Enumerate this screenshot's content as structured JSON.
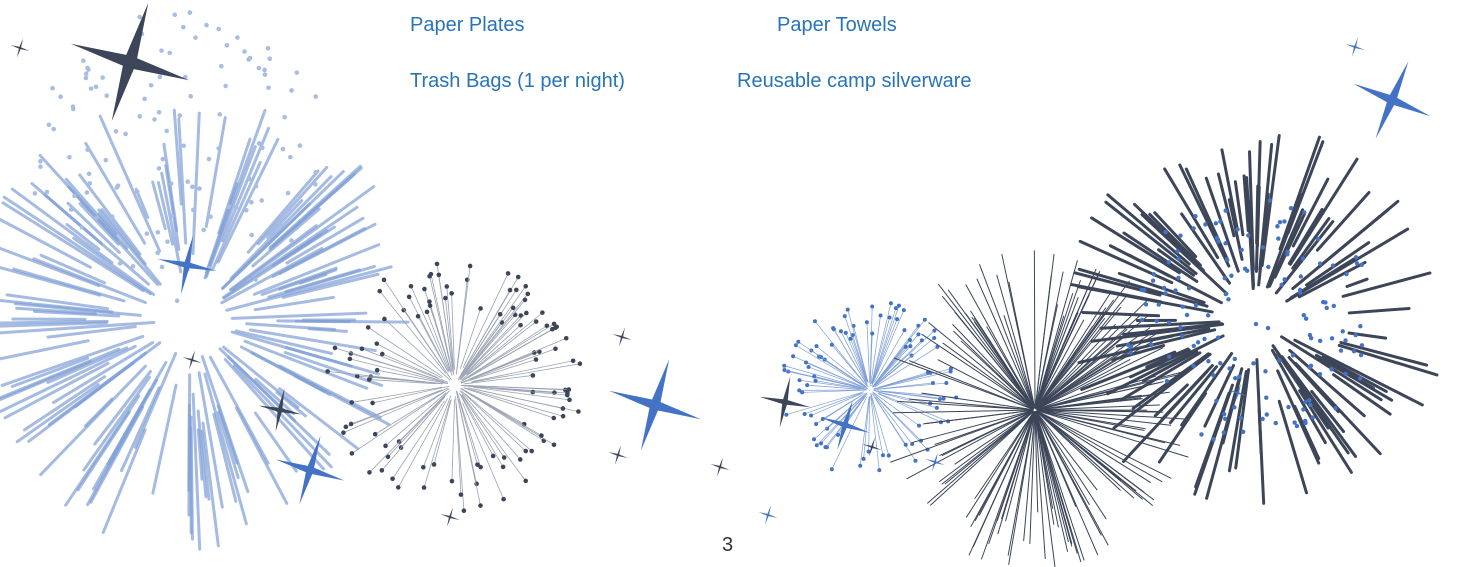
{
  "list": {
    "rows": [
      [
        "Paper Plates",
        "Paper Towels"
      ],
      [
        "Trash Bags (1 per night)",
        "Reusable camp silverware"
      ]
    ]
  },
  "page_number": "3"
}
